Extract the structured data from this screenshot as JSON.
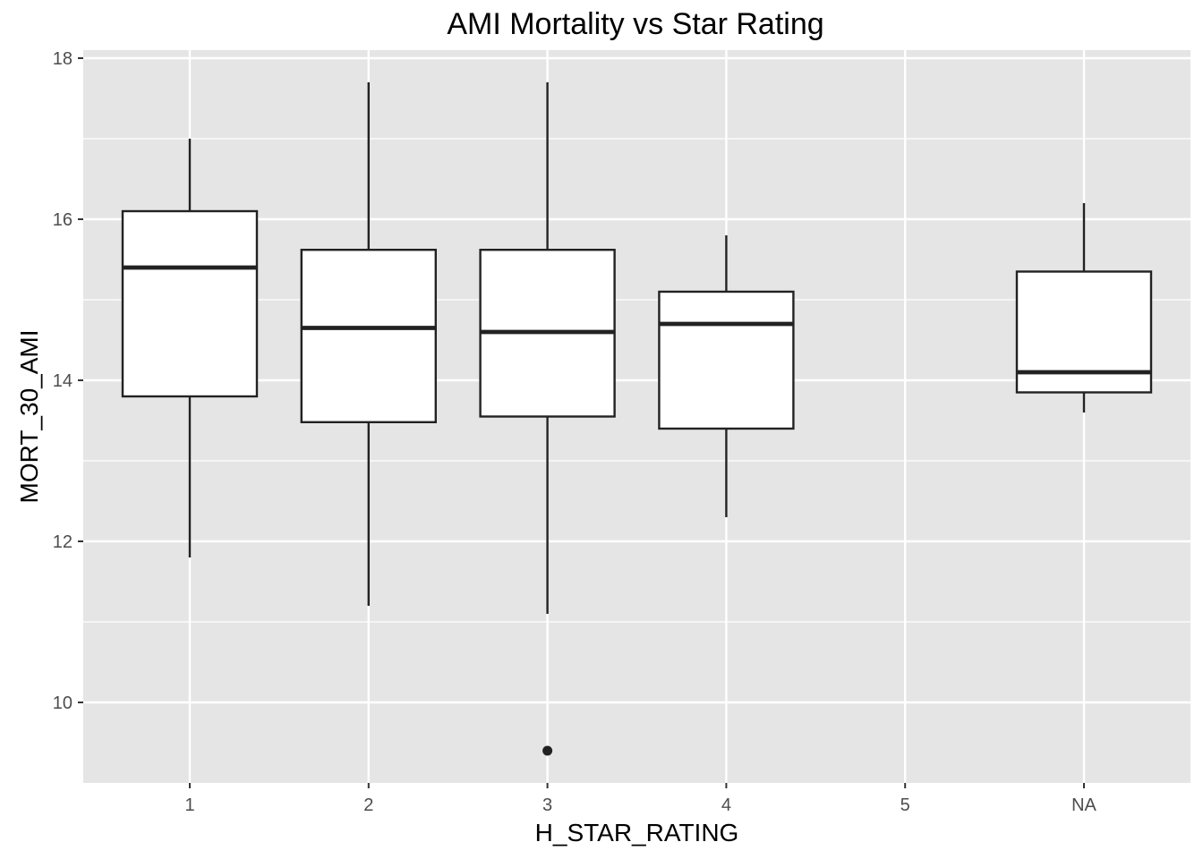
{
  "chart_data": {
    "type": "boxplot",
    "title": "AMI Mortality vs Star Rating",
    "xlabel": "H_STAR_RATING",
    "ylabel": "MORT_30_AMI",
    "categories": [
      "1",
      "2",
      "3",
      "4",
      "5",
      "NA"
    ],
    "ylim": [
      9.0,
      18.1
    ],
    "y_ticks": [
      10,
      12,
      14,
      16,
      18
    ],
    "grid": true,
    "legend": "none",
    "boxes": [
      {
        "category": "1",
        "whisker_low": 11.8,
        "q1": 13.8,
        "median": 15.4,
        "q3": 16.1,
        "whisker_high": 17.0,
        "outliers": []
      },
      {
        "category": "2",
        "whisker_low": 11.2,
        "q1": 13.48,
        "median": 14.65,
        "q3": 15.62,
        "whisker_high": 17.7,
        "outliers": []
      },
      {
        "category": "3",
        "whisker_low": 11.1,
        "q1": 13.55,
        "median": 14.6,
        "q3": 15.62,
        "whisker_high": 17.7,
        "outliers": [
          9.4
        ]
      },
      {
        "category": "4",
        "whisker_low": 12.3,
        "q1": 13.4,
        "median": 14.7,
        "q3": 15.1,
        "whisker_high": 15.8,
        "outliers": []
      },
      {
        "category": "NA",
        "whisker_low": 13.6,
        "q1": 13.85,
        "median": 14.1,
        "q3": 15.35,
        "whisker_high": 16.2,
        "outliers": []
      }
    ],
    "colors": {
      "panel_background": "#e5e5e5",
      "grid_line": "#ffffff",
      "box_fill": "#ffffff",
      "box_stroke": "#222222",
      "tick_text": "#4d4d4d"
    }
  }
}
